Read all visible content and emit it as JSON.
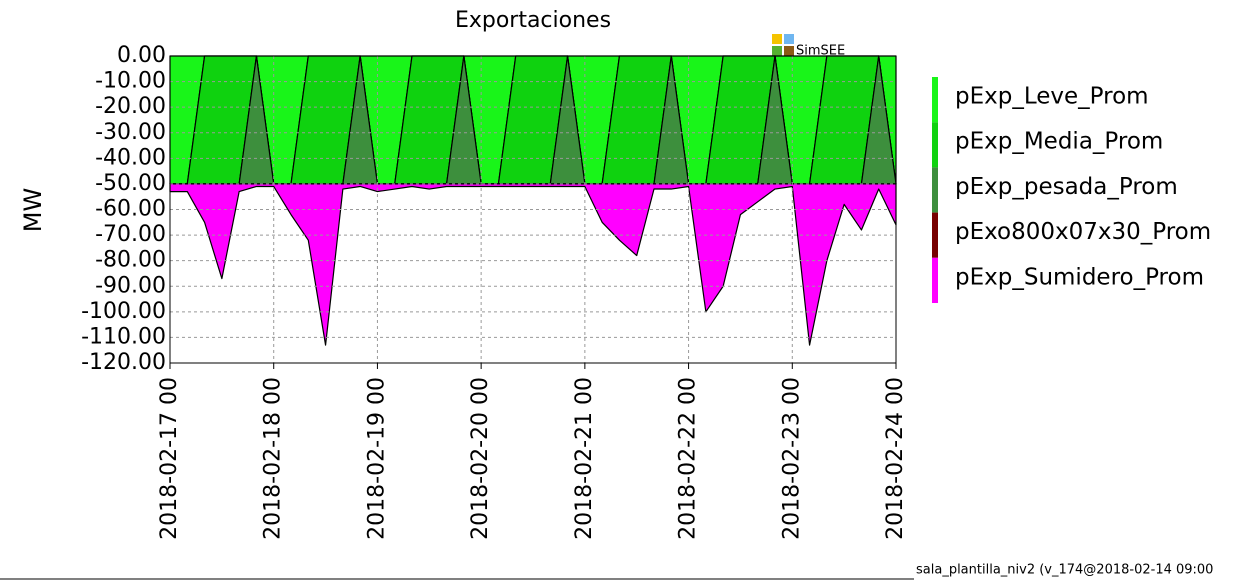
{
  "chart_data": {
    "type": "stacked_area",
    "title": "Exportaciones",
    "ylabel": "MW",
    "watermark": "SimSEE",
    "footer": "sala_plantilla_niv2 (v_174@2018-02-14 09:00",
    "categories": [
      "2018-02-17 00",
      null,
      null,
      null,
      null,
      null,
      "2018-02-18 00",
      null,
      null,
      null,
      null,
      null,
      "2018-02-19 00",
      null,
      null,
      null,
      null,
      null,
      "2018-02-20 00",
      null,
      null,
      null,
      null,
      null,
      "2018-02-21 00",
      null,
      null,
      null,
      null,
      null,
      "2018-02-22 00",
      null,
      null,
      null,
      null,
      null,
      "2018-02-23 00",
      null,
      null,
      null,
      null,
      null,
      "2018-02-24 00"
    ],
    "ylim": [
      -120,
      0
    ],
    "yticks": [
      {
        "value": 0,
        "label": "0.00"
      },
      {
        "value": -10,
        "label": "-10.00"
      },
      {
        "value": -20,
        "label": "-20.00"
      },
      {
        "value": -30,
        "label": "-30.00"
      },
      {
        "value": -40,
        "label": "-40.00"
      },
      {
        "value": -50,
        "label": "-50.00"
      },
      {
        "value": -60,
        "label": "-60.00"
      },
      {
        "value": -70,
        "label": "-70.00"
      },
      {
        "value": -80,
        "label": "-80.00"
      },
      {
        "value": -90,
        "label": "-90.00"
      },
      {
        "value": -100,
        "label": "-100.00"
      },
      {
        "value": -110,
        "label": "-110.00"
      },
      {
        "value": -120,
        "label": "-120.00"
      }
    ],
    "grid": true,
    "series": [
      {
        "name": "pExp_Leve_Prom",
        "color": "#19f519",
        "values": [
          -50,
          -50,
          0,
          0,
          0,
          0,
          -50,
          -50,
          0,
          0,
          0,
          0,
          -50,
          -50,
          0,
          0,
          0,
          0,
          -50,
          -50,
          0,
          0,
          0,
          0,
          -50,
          -50,
          0,
          0,
          0,
          0,
          -50,
          -50,
          0,
          0,
          0,
          0,
          -50,
          -50,
          0,
          0,
          0,
          0,
          -50
        ]
      },
      {
        "name": "pExp_Media_Prom",
        "color": "#0fd20f",
        "values": [
          0,
          0,
          -50,
          -50,
          -50,
          0,
          0,
          0,
          -50,
          -50,
          -50,
          0,
          0,
          0,
          -50,
          -50,
          -50,
          0,
          0,
          0,
          -50,
          -50,
          -50,
          0,
          0,
          0,
          -50,
          -50,
          -50,
          0,
          0,
          0,
          -50,
          -50,
          -50,
          0,
          0,
          0,
          -50,
          -50,
          -50,
          0,
          0
        ]
      },
      {
        "name": "pExp_pesada_Prom",
        "color": "#3d8f3d",
        "values": [
          0,
          0,
          0,
          0,
          0,
          -50,
          0,
          0,
          0,
          0,
          0,
          -50,
          0,
          0,
          0,
          0,
          0,
          -50,
          0,
          0,
          0,
          0,
          0,
          -50,
          0,
          0,
          0,
          0,
          0,
          -50,
          0,
          0,
          0,
          0,
          0,
          -50,
          0,
          0,
          0,
          0,
          0,
          -50,
          0
        ]
      },
      {
        "name": "pExo800x07x30_Prom",
        "color": "#780000",
        "values": [
          0,
          0,
          0,
          0,
          0,
          0,
          0,
          0,
          0,
          0,
          0,
          0,
          0,
          0,
          0,
          0,
          0,
          0,
          0,
          0,
          0,
          0,
          0,
          0,
          0,
          0,
          0,
          0,
          0,
          0,
          0,
          0,
          0,
          0,
          0,
          0,
          0,
          0,
          0,
          0,
          0,
          0,
          0
        ]
      },
      {
        "name": "pExp_Sumidero_Prom",
        "color": "#ff00ff",
        "values": [
          -3,
          -3,
          -15,
          -37,
          -3,
          -1,
          -1,
          -12,
          -22,
          -63,
          -2,
          -1,
          -3,
          -2,
          -1,
          -2,
          -1,
          -1,
          -1,
          -1,
          -1,
          -1,
          -1,
          -1,
          -1,
          -15,
          -22,
          -28,
          -2,
          -2,
          -1,
          -50,
          -40,
          -12,
          -7,
          -2,
          -1,
          -63,
          -30,
          -8,
          -18,
          -2,
          -16
        ]
      }
    ]
  }
}
